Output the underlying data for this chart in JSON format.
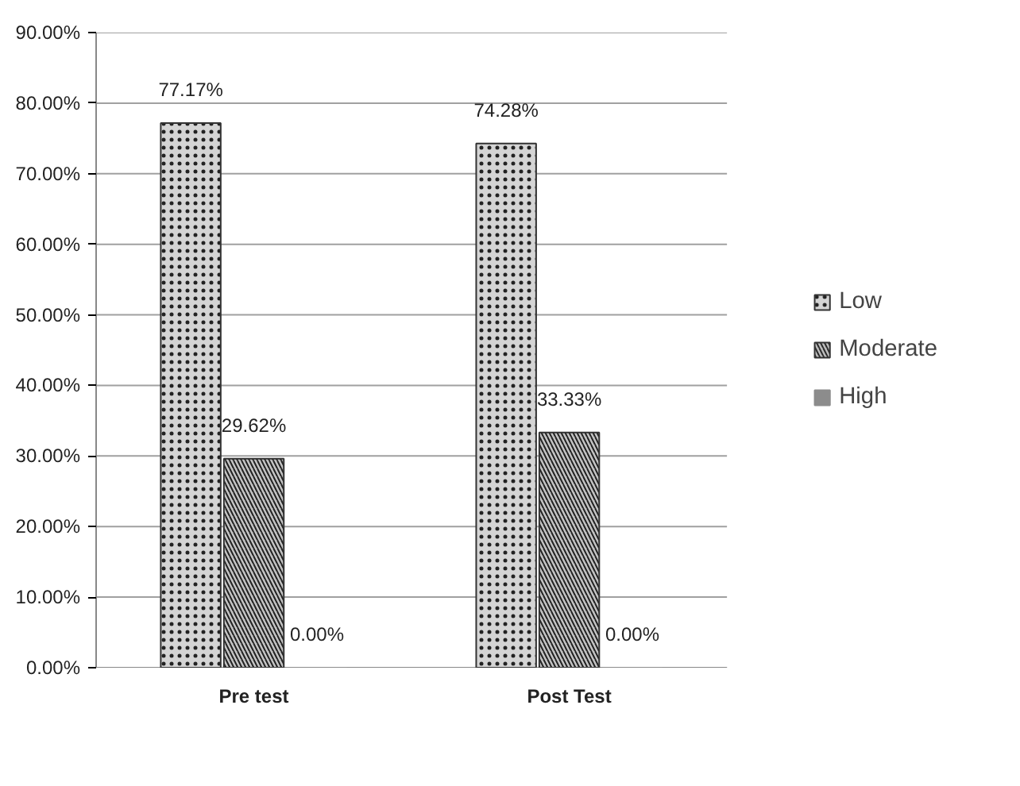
{
  "chart_data": {
    "type": "bar",
    "categories": [
      "Pre test",
      "Post Test"
    ],
    "series": [
      {
        "name": "Low",
        "color": "#d4d4d4",
        "values": [
          77.17,
          74.28
        ],
        "value_labels": [
          "77.17%",
          "74.28%"
        ]
      },
      {
        "name": "Moderate",
        "color": "#c4c4c4",
        "values": [
          29.62,
          33.33
        ],
        "value_labels": [
          "29.62%",
          "33.33%"
        ]
      },
      {
        "name": "High",
        "color": "#8c8c8c",
        "values": [
          0,
          0
        ],
        "value_labels": [
          "0.00%",
          "0.00%"
        ]
      }
    ],
    "ylim": [
      0,
      90
    ],
    "yticks": [
      {
        "value": 0,
        "label": "0.00%"
      },
      {
        "value": 10,
        "label": "10.00%"
      },
      {
        "value": 20,
        "label": "20.00%"
      },
      {
        "value": 30,
        "label": "30.00%"
      },
      {
        "value": 40,
        "label": "40.00%"
      },
      {
        "value": 50,
        "label": "50.00%"
      },
      {
        "value": 60,
        "label": "60.00%"
      },
      {
        "value": 70,
        "label": "70.00%"
      },
      {
        "value": 80,
        "label": "80.00%"
      },
      {
        "value": 90,
        "label": "90.00%"
      }
    ],
    "grid": "y",
    "legend": "right"
  }
}
